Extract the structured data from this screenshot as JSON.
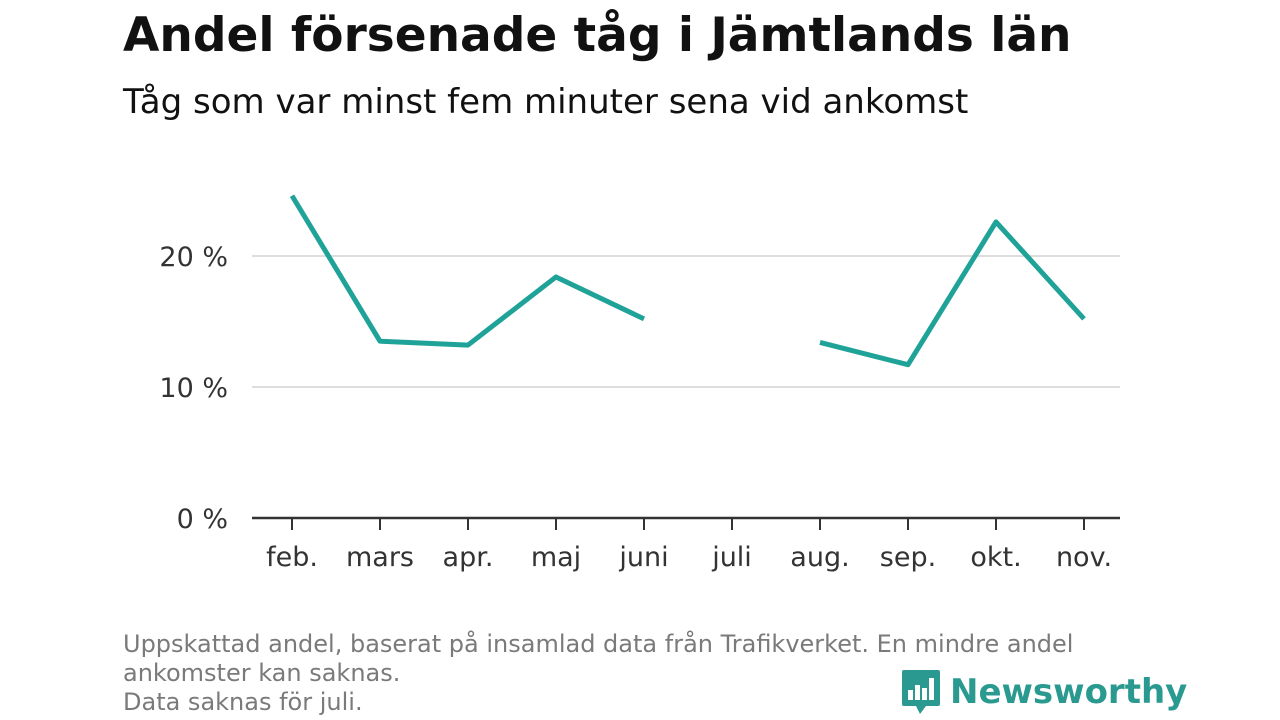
{
  "title": "Andel försenade tåg i Jämtlands län",
  "subtitle": "Tåg som var minst fem minuter sena vid ankomst",
  "footnote": {
    "line1": "Uppskattad andel, baserat på insamlad data från Trafikverket. En mindre andel",
    "line2": "ankomster kan saknas.",
    "line3": "Data saknas för juli."
  },
  "brand": {
    "name": "Newsworthy",
    "color": "#2a9a90",
    "icon": "bar-chart-speech-bubble-icon"
  },
  "chart_data": {
    "type": "line",
    "title": "Andel försenade tåg i Jämtlands län",
    "subtitle": "Tåg som var minst fem minuter sena vid ankomst",
    "categories": [
      "feb.",
      "mars",
      "apr.",
      "maj",
      "juni",
      "juli",
      "aug.",
      "sep.",
      "okt.",
      "nov."
    ],
    "series": [
      {
        "values": [
          24.6,
          13.5,
          13.2,
          18.4,
          15.2,
          null,
          13.4,
          11.7,
          22.6,
          15.2
        ],
        "color": "#1fa398"
      }
    ],
    "ylim": [
      0,
      30
    ],
    "yticks": [
      0,
      10,
      20
    ],
    "ytick_labels": [
      "0 %",
      "10 %",
      "20 %"
    ],
    "grid": true,
    "xlabel": "",
    "ylabel": ""
  }
}
